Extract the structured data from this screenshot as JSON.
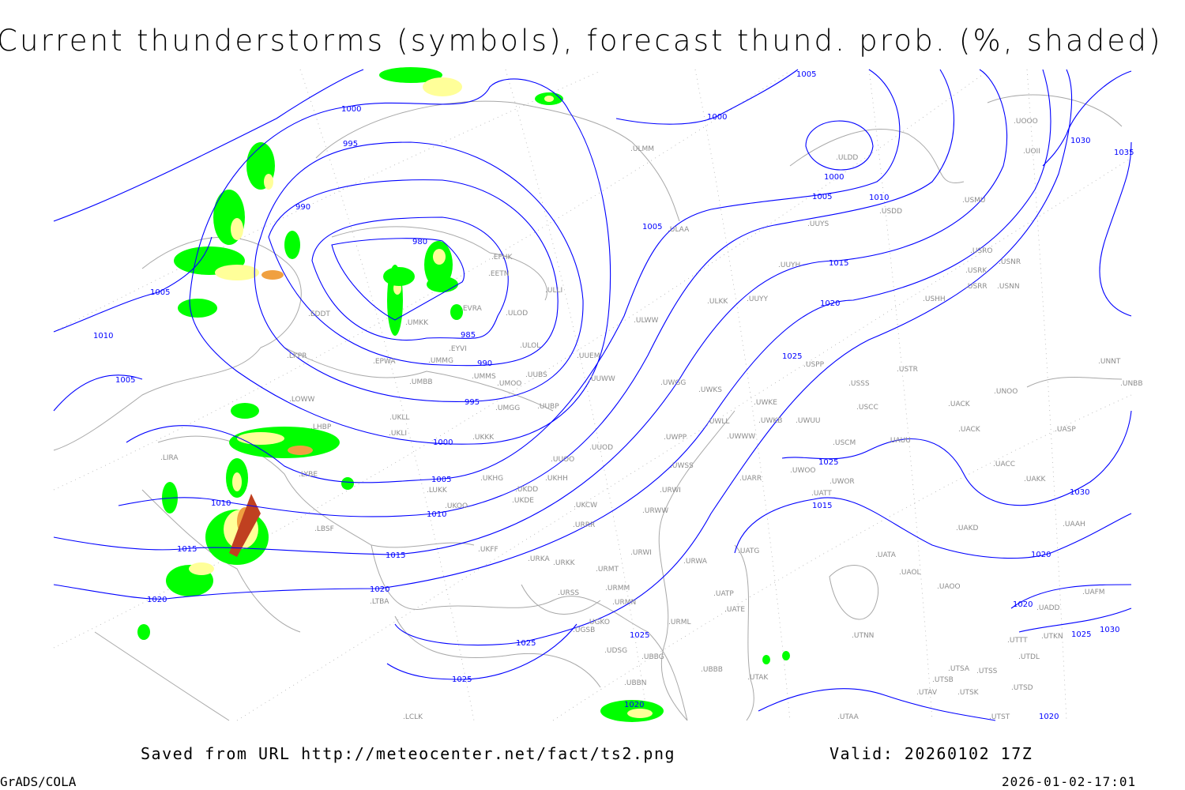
{
  "title": "Current thunderstorms (symbols), forecast thund. prob. (%, shaded)",
  "footer": {
    "saved_from": "Saved from URL http://meteocenter.net/fact/ts2.png",
    "valid": "Valid: 20260102 17Z",
    "software": "GrADS/COLA",
    "timestamp": "2026-01-02-17:01"
  },
  "colors": {
    "isobar": "#0000ff",
    "station_label": "#8c8c8c",
    "coastline_border": "#a8a8a8",
    "prob_low": "#00ff00",
    "prob_mid": "#ffff99",
    "prob_high": "#f0a040",
    "prob_max": "#c04020"
  },
  "isobar_labels": [
    "980",
    "985",
    "990",
    "990",
    "995",
    "995",
    "1000",
    "1000",
    "1000",
    "1000",
    "1005",
    "1005",
    "1005",
    "1005",
    "1005",
    "1005",
    "1010",
    "1010",
    "1010",
    "1010",
    "1015",
    "1015",
    "1015",
    "1015",
    "1020",
    "1020",
    "1020",
    "1020",
    "1020",
    "1025",
    "1025",
    "1025",
    "1025",
    "1025",
    "1025",
    "1030",
    "1030",
    "1030",
    "1035",
    "1020",
    "1020"
  ],
  "stations": [
    "ULMM",
    "ULDD",
    "UUYS",
    "USDD",
    "USMU",
    "UOOO",
    "UOII",
    "ULAA",
    "EFHK",
    "EETN",
    "ULLI",
    "EVRA",
    "ULOD",
    "EDDT",
    "UMKK",
    "EYVI",
    "ULOL",
    "EPWA",
    "UMMG",
    "LKPR",
    "UMMS",
    "UMOO",
    "UUBS",
    "UMBB",
    "UUEM",
    "UUWW",
    "UWGG",
    "UWKS",
    "UUYH",
    "ULKK",
    "UUYY",
    "ULWW",
    "USPP",
    "USSS",
    "USTR",
    "USRR",
    "USRK",
    "USNR",
    "USRO",
    "USNN",
    "USHH",
    "LOWW",
    "UMGG",
    "UUBP",
    "UWKE",
    "UWKB",
    "UWUU",
    "USCC",
    "UACK",
    "UNOO",
    "UNNT",
    "UNBB",
    "UACK",
    "UASP",
    "UKLL",
    "UKLI",
    "LHBP",
    "UKKK",
    "UWLL",
    "UWWW",
    "UWPP",
    "USCM",
    "UAUU",
    "LIRA",
    "LYBE",
    "UUOO",
    "UUOD",
    "UKHG",
    "UKDD",
    "UKHH",
    "UWSS",
    "UARR",
    "UWOO",
    "UWOR",
    "UACC",
    "UAKK",
    "LUKK",
    "UKOO",
    "UKDE",
    "UKCW",
    "URWI",
    "URWW",
    "UATT",
    "URRR",
    "UAKD",
    "UAAH",
    "LBSF",
    "UKFF",
    "URKA",
    "URKK",
    "URWI",
    "UATG",
    "UATA",
    "LTBA",
    "URMT",
    "URMM",
    "URSS",
    "URMN",
    "URWA",
    "UATP",
    "UATE",
    "UAOL",
    "UAOO",
    "UAFM",
    "UGKO",
    "UGSB",
    "URML",
    "UDSG",
    "UBBG",
    "UBBN",
    "UBBB",
    "UTAK",
    "UTNN",
    "UTSA",
    "UTSS",
    "UTSB",
    "UTAV",
    "UTSK",
    "UTTT",
    "UTDL",
    "UTSD",
    "UTST",
    "UTAA",
    "LCLK",
    "UTKN",
    "UADD"
  ]
}
